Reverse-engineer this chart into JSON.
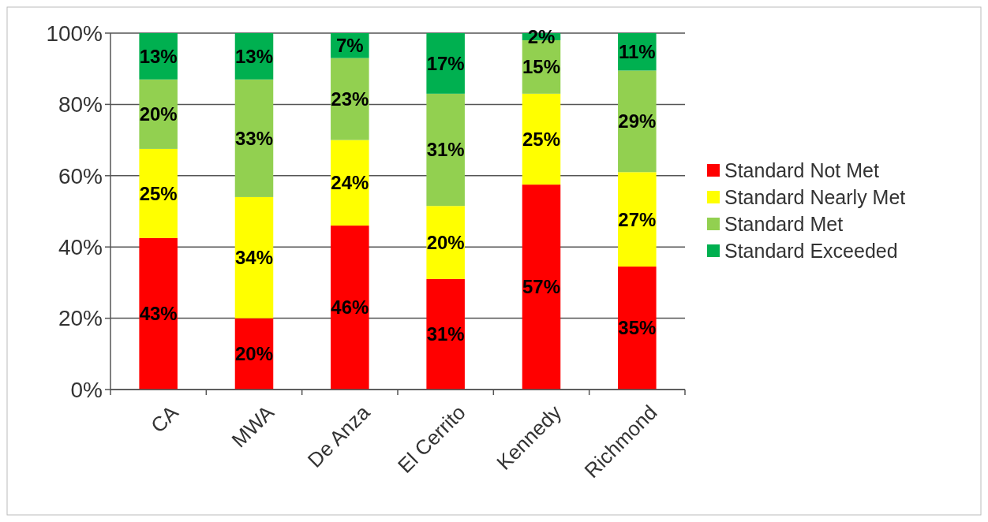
{
  "chart_data": {
    "type": "bar",
    "stacked": true,
    "categories": [
      "CA",
      "MWA",
      "De Anza",
      "El Cerrito",
      "Kennedy",
      "Richmond"
    ],
    "ylim": [
      0,
      100
    ],
    "yticks": [
      {
        "value": 0,
        "label": "0%"
      },
      {
        "value": 20,
        "label": "20%"
      },
      {
        "value": 40,
        "label": "40%"
      },
      {
        "value": 60,
        "label": "60%"
      },
      {
        "value": 80,
        "label": "80%"
      },
      {
        "value": 100,
        "label": "100%"
      }
    ],
    "grid": "y",
    "legend": "right",
    "series": [
      {
        "name": "Standard Not Met",
        "color": "#ff0000",
        "values": [
          42.5,
          20,
          46,
          31,
          57.5,
          34.5
        ],
        "value_labels": [
          "43%",
          "20%",
          "46%",
          "31%",
          "57%",
          "35%"
        ]
      },
      {
        "name": "Standard Nearly Met",
        "color": "#ffff00",
        "values": [
          25,
          34,
          24,
          20.5,
          25.5,
          26.5
        ],
        "value_labels": [
          "25%",
          "34%",
          "24%",
          "20%",
          "25%",
          "27%"
        ]
      },
      {
        "name": "Standard Met",
        "color": "#92d050",
        "values": [
          19.5,
          33,
          23,
          31.5,
          15,
          28.5
        ],
        "value_labels": [
          "20%",
          "33%",
          "23%",
          "31%",
          "15%",
          "29%"
        ]
      },
      {
        "name": "Standard Exceeded",
        "color": "#00b050",
        "values": [
          13,
          13,
          7,
          17,
          2,
          10.5
        ],
        "value_labels": [
          "13%",
          "13%",
          "7%",
          "17%",
          "2%",
          "11%"
        ]
      }
    ]
  }
}
